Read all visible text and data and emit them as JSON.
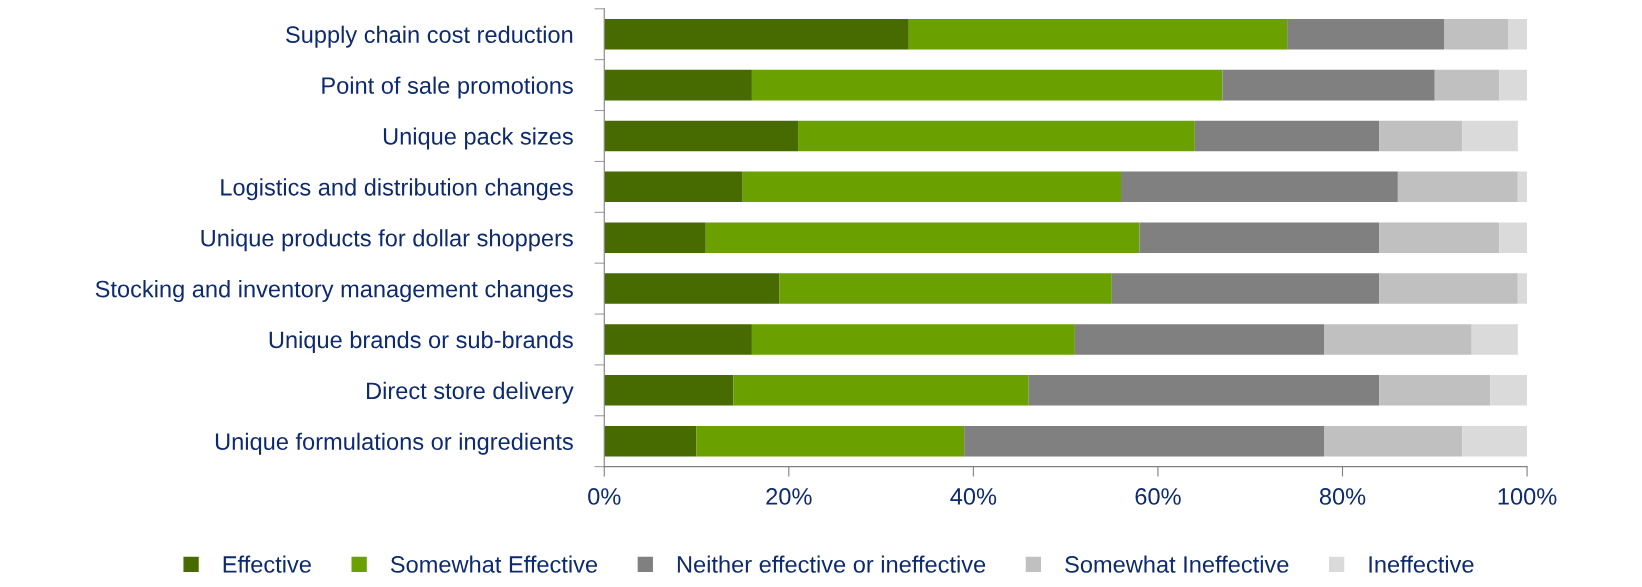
{
  "chart_data": {
    "type": "bar",
    "orientation": "horizontal",
    "stacked": true,
    "categories": [
      "Supply chain cost reduction",
      "Point of sale promotions",
      "Unique pack sizes",
      "Logistics and distribution changes",
      "Unique products for dollar shoppers",
      "Stocking and inventory management changes",
      "Unique brands or sub-brands",
      "Direct store delivery",
      "Unique formulations or ingredients"
    ],
    "series": [
      {
        "name": "Effective",
        "color": "#476b00",
        "values": [
          33,
          16,
          21,
          15,
          11,
          19,
          16,
          14,
          10
        ]
      },
      {
        "name": "Somewhat Effective",
        "color": "#6aa100",
        "values": [
          41,
          51,
          43,
          41,
          47,
          36,
          35,
          32,
          29
        ]
      },
      {
        "name": "Neither effective or ineffective",
        "color": "#808080",
        "values": [
          17,
          23,
          20,
          30,
          26,
          29,
          27,
          38,
          39
        ]
      },
      {
        "name": "Somewhat Ineffective",
        "color": "#c0c0c0",
        "values": [
          7,
          7,
          9,
          13,
          13,
          15,
          16,
          12,
          15
        ]
      },
      {
        "name": "Ineffective",
        "color": "#dadada",
        "values": [
          2,
          3,
          6,
          1,
          3,
          1,
          5,
          4,
          7
        ]
      }
    ],
    "xlim": [
      0,
      100
    ],
    "xticks": [
      {
        "value": 0,
        "label": "0%"
      },
      {
        "value": 20,
        "label": "20%"
      },
      {
        "value": 40,
        "label": "40%"
      },
      {
        "value": 60,
        "label": "60%"
      },
      {
        "value": 80,
        "label": "80%"
      },
      {
        "value": 100,
        "label": "100%"
      }
    ],
    "legend": "bottom",
    "grid": false
  }
}
